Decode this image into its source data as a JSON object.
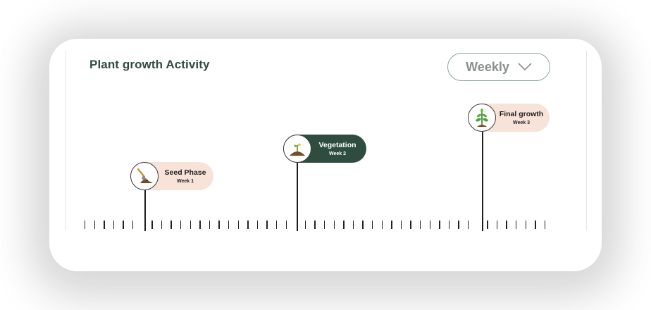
{
  "header": {
    "title": "Plant growth Activity"
  },
  "period_select": {
    "value": "Weekly",
    "icon": "chevron-down-icon"
  },
  "stages": [
    {
      "title": "Seed Phase",
      "week": "Week 1",
      "icon": "shovel-soil-icon",
      "active": false
    },
    {
      "title": "Vegetation",
      "week": "Week 2",
      "icon": "sprout-icon",
      "active": true
    },
    {
      "title": "Final growth",
      "week": "Week 3",
      "icon": "grown-plant-icon",
      "active": false
    }
  ],
  "colors": {
    "accent_dark": "#2f4d3f",
    "pill_light": "#f8e3d9",
    "select_border": "#8aa597"
  }
}
